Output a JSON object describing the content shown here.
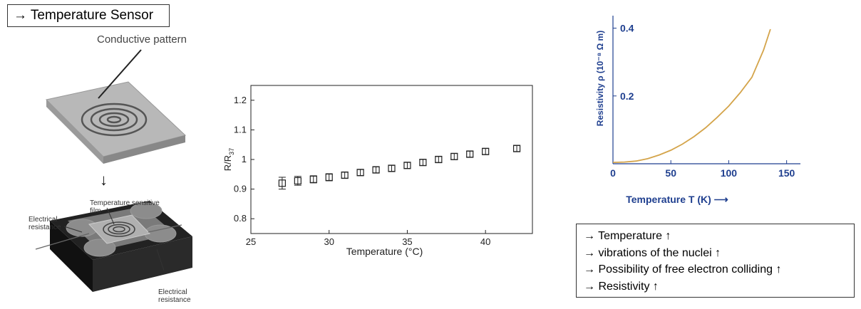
{
  "title": "→ Temperature Sensor",
  "sensor_illustration": {
    "conductive_label": "Conductive pattern",
    "down_arrow": "↓",
    "film_label": "Temperature sensitive film",
    "resistance_label_left": "Electrical resistance",
    "resistance_label_right": "Electrical resistance"
  },
  "notes": [
    "→ Temperature ↑",
    "→ vibrations of the nuclei ↑",
    "→ Possibility of free electron colliding ↑",
    "→ Resistivity  ↑"
  ],
  "chart_data": [
    {
      "type": "scatter",
      "xlabel": "Temperature (°C)",
      "ylabel": "R/R37",
      "xlim": [
        25,
        43
      ],
      "ylim": [
        0.75,
        1.25
      ],
      "xticks": [
        "25",
        "30",
        "35",
        "40"
      ],
      "yticks": [
        "0.8",
        "0.9",
        "1",
        "1.1",
        "1.2"
      ],
      "grid": false,
      "series": [
        {
          "marker": "square-with-errorbars",
          "points": [
            {
              "x": 27,
              "y": 0.92,
              "err": 0.02
            },
            {
              "x": 28,
              "y": 0.928,
              "err": 0.015
            },
            {
              "x": 29,
              "y": 0.933,
              "err": 0.012
            },
            {
              "x": 30,
              "y": 0.94,
              "err": 0.012
            },
            {
              "x": 31,
              "y": 0.947,
              "err": 0.01
            },
            {
              "x": 32,
              "y": 0.956,
              "err": 0.01
            },
            {
              "x": 33,
              "y": 0.965,
              "err": 0.01
            },
            {
              "x": 34,
              "y": 0.97,
              "err": 0.01
            },
            {
              "x": 35,
              "y": 0.98,
              "err": 0.01
            },
            {
              "x": 36,
              "y": 0.99,
              "err": 0.01
            },
            {
              "x": 37,
              "y": 1.0,
              "err": 0.01
            },
            {
              "x": 38,
              "y": 1.01,
              "err": 0.01
            },
            {
              "x": 39,
              "y": 1.018,
              "err": 0.01
            },
            {
              "x": 40,
              "y": 1.027,
              "err": 0.01
            },
            {
              "x": 42,
              "y": 1.037,
              "err": 0.01
            }
          ]
        }
      ]
    },
    {
      "type": "line",
      "xlabel": "Temperature T (K) ⟶",
      "ylabel": "Resistivity ρ (10⁻⁸ Ω m)",
      "xlim": [
        0,
        165
      ],
      "ylim": [
        0,
        0.42
      ],
      "xticks": [
        "0",
        "50",
        "100",
        "150"
      ],
      "yticks": [
        "0.2",
        "0.4"
      ],
      "colors": {
        "curve": "#d4a44a",
        "axis_text": "#1f3f8f"
      },
      "series": [
        {
          "x": [
            0,
            10,
            20,
            30,
            40,
            50,
            60,
            70,
            80,
            90,
            100,
            110,
            120,
            130,
            136
          ],
          "y": [
            0.004,
            0.005,
            0.008,
            0.015,
            0.026,
            0.04,
            0.058,
            0.08,
            0.106,
            0.137,
            0.17,
            0.21,
            0.255,
            0.335,
            0.397
          ]
        }
      ]
    }
  ]
}
